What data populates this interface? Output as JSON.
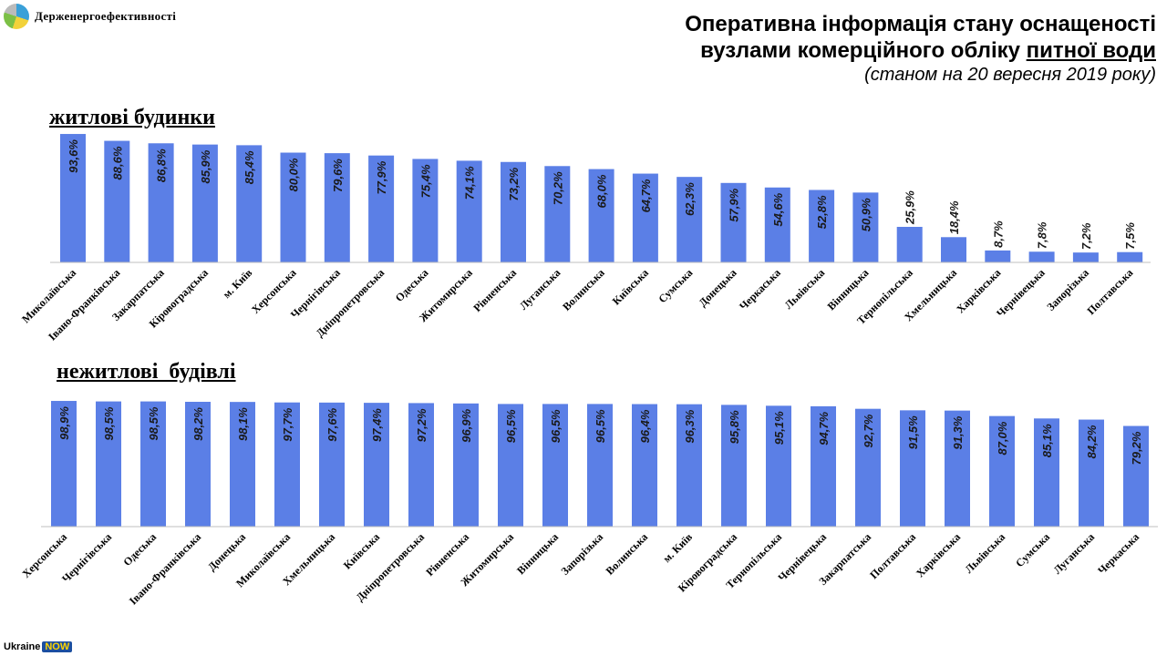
{
  "header": {
    "org": "Держенергоефективності",
    "title_line1": "Оперативна інформація стану оснащеності",
    "title_line2_prefix": "вузлами комерційного обліку ",
    "title_line2_underlined": "питної води",
    "subtitle": "(станом на 20 вересня 2019 року)"
  },
  "footer": {
    "brand_a": "Ukraine",
    "brand_b": "NOW"
  },
  "chart_data": [
    {
      "type": "bar",
      "title": "житлові будинки",
      "unit": "%",
      "ylim": [
        0,
        100
      ],
      "categories": [
        "Миколаївська",
        "Івано-Франківська",
        "Закарпатська",
        "Кіровоградська",
        "м. Київ",
        "Херсонська",
        "Чернігівська",
        "Дніпропетровська",
        "Одеська",
        "Житомирська",
        "Рівненська",
        "Луганська",
        "Волинська",
        "Київська",
        "Сумська",
        "Донецька",
        "Черкаська",
        "Львівська",
        "Вінницька",
        "Тернопільська",
        "Хмельницька",
        "Харківська",
        "Чернівецька",
        "Запорізька",
        "Полтавська"
      ],
      "values": [
        93.6,
        88.6,
        86.8,
        85.9,
        85.4,
        80.0,
        79.6,
        77.9,
        75.4,
        74.1,
        73.2,
        70.2,
        68.0,
        64.7,
        62.3,
        57.9,
        54.6,
        52.8,
        50.9,
        25.9,
        18.4,
        8.7,
        7.8,
        7.2,
        7.5
      ],
      "labels": [
        "93,6%",
        "88,6%",
        "86,8%",
        "85,9%",
        "85,4%",
        "80,0%",
        "79,6%",
        "77,9%",
        "75,4%",
        "74,1%",
        "73,2%",
        "70,2%",
        "68,0%",
        "64,7%",
        "62,3%",
        "57,9%",
        "54,6%",
        "52,8%",
        "50,9%",
        "25,9%",
        "18,4%",
        "8,7%",
        "7,8%",
        "7,2%",
        "7,5%"
      ],
      "color": "#5b7fe6"
    },
    {
      "type": "bar",
      "title": "нежитлові  будівлі",
      "unit": "%",
      "ylim": [
        0,
        100
      ],
      "categories": [
        "Херсонська",
        "Чернігівська",
        "Одеська",
        "Івано-Франківська",
        "Донецька",
        "Миколаївська",
        "Хмельницька",
        "Київська",
        "Дніпропетровська",
        "Рівненська",
        "Житомирська",
        "Вінницька",
        "Запорізька",
        "Волинська",
        "м. Київ",
        "Кіровоградська",
        "Тернопільська",
        "Чернівецька",
        "Закарпатська",
        "Полтавська",
        "Харківська",
        "Львівська",
        "Сумська",
        "Луганська",
        "Черкаська"
      ],
      "values": [
        98.9,
        98.5,
        98.5,
        98.2,
        98.1,
        97.7,
        97.6,
        97.4,
        97.2,
        96.9,
        96.5,
        96.5,
        96.5,
        96.4,
        96.3,
        95.8,
        95.1,
        94.7,
        92.7,
        91.5,
        91.3,
        87.0,
        85.1,
        84.2,
        79.2
      ],
      "labels": [
        "98,9%",
        "98,5%",
        "98,5%",
        "98,2%",
        "98,1%",
        "97,7%",
        "97,6%",
        "97,4%",
        "97,2%",
        "96,9%",
        "96,5%",
        "96,5%",
        "96,5%",
        "96,4%",
        "96,3%",
        "95,8%",
        "95,1%",
        "94,7%",
        "92,7%",
        "91,5%",
        "91,3%",
        "87,0%",
        "85,1%",
        "84,2%",
        "79,2%"
      ],
      "color": "#5b7fe6"
    }
  ]
}
